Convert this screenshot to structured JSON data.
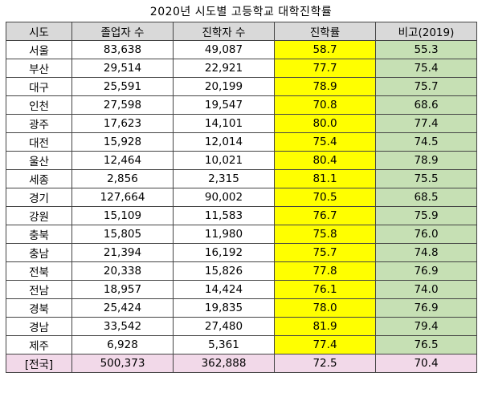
{
  "title": "2020년 시도별 고등학교 대학진학률",
  "headers": [
    "시도",
    "졸업자 수",
    "진학자 수",
    "진학률",
    "비고(2019)"
  ],
  "colors": {
    "rate_highlight": "#ffff00",
    "prev_highlight": "#c6e0b4",
    "total_row": "#f2d9e9",
    "header_bg": "#d9d9d9"
  },
  "rows": [
    {
      "region": "서울",
      "graduates": "83,638",
      "enrolled": "49,087",
      "rate": "58.7",
      "prev": "55.3"
    },
    {
      "region": "부산",
      "graduates": "29,514",
      "enrolled": "22,921",
      "rate": "77.7",
      "prev": "75.4"
    },
    {
      "region": "대구",
      "graduates": "25,591",
      "enrolled": "20,199",
      "rate": "78.9",
      "prev": "75.7"
    },
    {
      "region": "인천",
      "graduates": "27,598",
      "enrolled": "19,547",
      "rate": "70.8",
      "prev": "68.6"
    },
    {
      "region": "광주",
      "graduates": "17,623",
      "enrolled": "14,101",
      "rate": "80.0",
      "prev": "77.4"
    },
    {
      "region": "대전",
      "graduates": "15,928",
      "enrolled": "12,014",
      "rate": "75.4",
      "prev": "74.5"
    },
    {
      "region": "울산",
      "graduates": "12,464",
      "enrolled": "10,021",
      "rate": "80.4",
      "prev": "78.9"
    },
    {
      "region": "세종",
      "graduates": "2,856",
      "enrolled": "2,315",
      "rate": "81.1",
      "prev": "75.5"
    },
    {
      "region": "경기",
      "graduates": "127,664",
      "enrolled": "90,002",
      "rate": "70.5",
      "prev": "68.5"
    },
    {
      "region": "강원",
      "graduates": "15,109",
      "enrolled": "11,583",
      "rate": "76.7",
      "prev": "75.9"
    },
    {
      "region": "충북",
      "graduates": "15,805",
      "enrolled": "11,980",
      "rate": "75.8",
      "prev": "76.0"
    },
    {
      "region": "충남",
      "graduates": "21,394",
      "enrolled": "16,192",
      "rate": "75.7",
      "prev": "74.8"
    },
    {
      "region": "전북",
      "graduates": "20,338",
      "enrolled": "15,826",
      "rate": "77.8",
      "prev": "76.9"
    },
    {
      "region": "전남",
      "graduates": "18,957",
      "enrolled": "14,424",
      "rate": "76.1",
      "prev": "74.0"
    },
    {
      "region": "경북",
      "graduates": "25,424",
      "enrolled": "19,835",
      "rate": "78.0",
      "prev": "76.9"
    },
    {
      "region": "경남",
      "graduates": "33,542",
      "enrolled": "27,480",
      "rate": "81.9",
      "prev": "79.4"
    },
    {
      "region": "제주",
      "graduates": "6,928",
      "enrolled": "5,361",
      "rate": "77.4",
      "prev": "76.5"
    }
  ],
  "total": {
    "region": "[전국]",
    "graduates": "500,373",
    "enrolled": "362,888",
    "rate": "72.5",
    "prev": "70.4"
  }
}
